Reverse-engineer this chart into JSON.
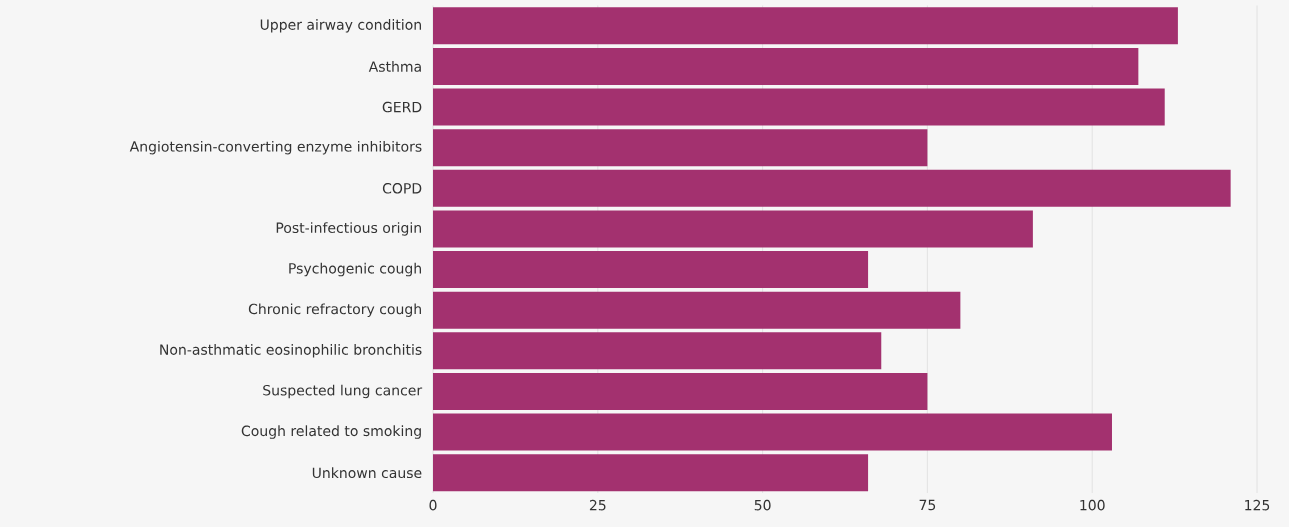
{
  "chart_data": {
    "type": "bar",
    "orientation": "horizontal",
    "categories": [
      "Upper airway condition",
      "Asthma",
      "GERD",
      "Angiotensin-converting enzyme inhibitors",
      "COPD",
      "Post-infectious origin",
      "Psychogenic cough",
      "Chronic refractory cough",
      "Non-asthmatic eosinophilic bronchitis",
      "Suspected lung cancer",
      "Cough related to smoking",
      "Unknown cause"
    ],
    "values": [
      113,
      107,
      111,
      75,
      121,
      91,
      66,
      80,
      68,
      75,
      103,
      66
    ],
    "color": "#a3316f",
    "xlim": [
      0,
      125
    ],
    "xticks": [
      0,
      25,
      50,
      75,
      100,
      125
    ],
    "grid": "x"
  }
}
